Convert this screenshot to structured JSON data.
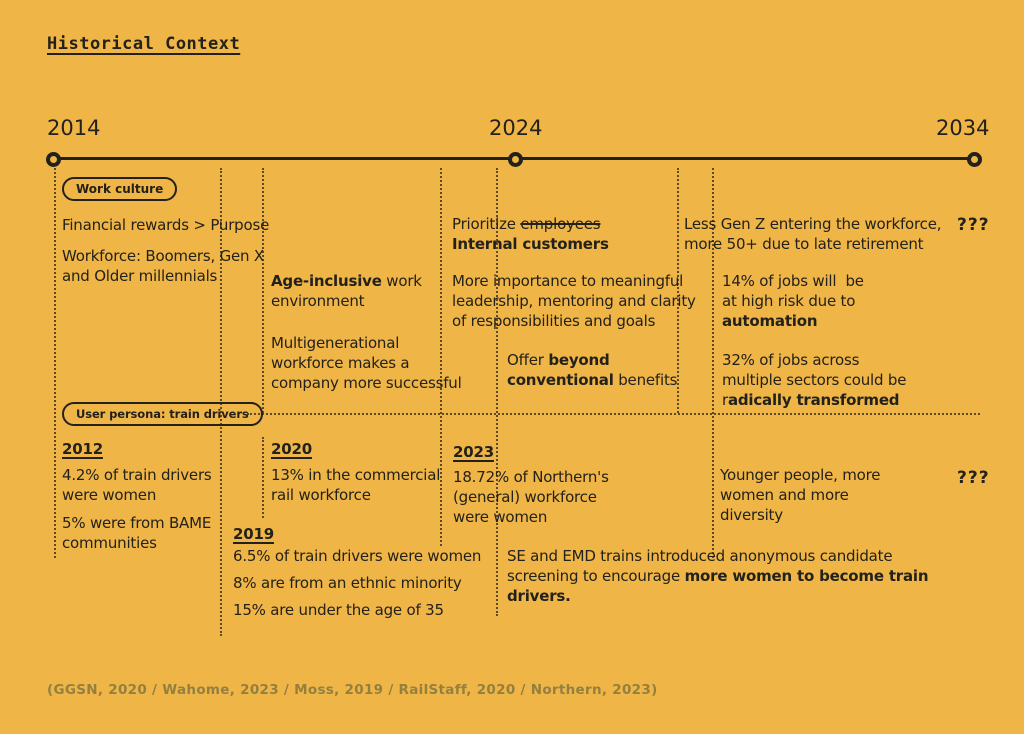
{
  "page": {
    "title": "Historical Context",
    "background_color": "#EFB546",
    "ink_color": "#23211B",
    "muted_color": "#93803F"
  },
  "timeline": {
    "start_year": "2014",
    "mid_year": "2024",
    "end_year": "2034"
  },
  "work_culture": {
    "badge": "Work culture",
    "rewards": "Financial rewards > Purpose",
    "workforce": "Workforce: Boomers, Gen X\nand Older millennials",
    "age_inclusive": "**Age-inclusive** work\nenvironment",
    "multigenerational": "Multigenerational\nworkforce makes a\ncompany more successful",
    "prioritize": "Prioritize ~~employees~~\n**Internal customers**",
    "leadership": "More importance to meaningful\nleadership, mentoring and clarity\nof responsibilities and goals",
    "benefits": "Offer **beyond**\n**conventional** benefits",
    "gen_z": "Less Gen Z entering the workforce,\nmore 50+ due to late retirement",
    "jobs_risk": "14% of jobs will  be\nat high risk due to\n**automation**",
    "jobs_transformed": "32% of jobs across\nmultiple sectors could be\nr**adically transformed**",
    "unknown_future": "???"
  },
  "persona": {
    "badge": "User persona: train drivers",
    "y2012": {
      "year": "2012",
      "stat1": "4.2% of train drivers\nwere women",
      "stat2": "5% were from BAME\ncommunities"
    },
    "y2020": {
      "year": "2020",
      "stat": "13% in the commercial\nrail workforce"
    },
    "y2019": {
      "year": "2019",
      "items": [
        "6.5% of train drivers were women",
        "8% are from an ethnic minority",
        "15% are under the age of 35"
      ]
    },
    "y2023": {
      "year": "2023",
      "stat": "18.72% of Northern's\n(general) workforce\nwere women"
    },
    "se_emd": "SE and EMD trains introduced anonymous candidate\nscreening to encourage **more women to become train\ndrivers.**",
    "future": "Younger people, more\nwomen and more\ndiversity",
    "unknown_future": "???"
  },
  "footer": {
    "citation": "(GGSN, 2020 / Wahome, 2023 / Moss, 2019 / RailStaff, 2020 / Northern, 2023)"
  }
}
